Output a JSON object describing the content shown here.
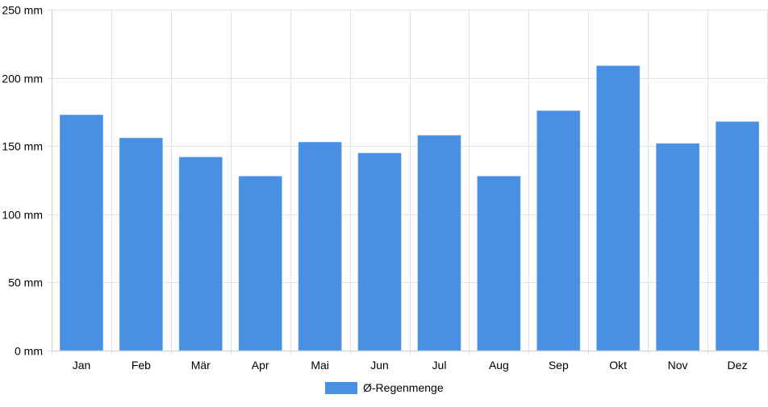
{
  "chart_data": {
    "type": "bar",
    "categories": [
      "Jan",
      "Feb",
      "Mär",
      "Apr",
      "Mai",
      "Jun",
      "Jul",
      "Aug",
      "Sep",
      "Okt",
      "Nov",
      "Dez"
    ],
    "series": [
      {
        "name": "Ø-Regenmenge",
        "color": "#4a90e2",
        "values": [
          173,
          156,
          142,
          128,
          153,
          145,
          158,
          128,
          176,
          209,
          152,
          168
        ]
      }
    ],
    "y_ticks": [
      0,
      50,
      100,
      150,
      200,
      250
    ],
    "y_unit": "mm",
    "ylim": [
      0,
      250
    ],
    "title": "",
    "xlabel": "",
    "ylabel": "",
    "grid": true,
    "legend_position": "bottom-center"
  }
}
